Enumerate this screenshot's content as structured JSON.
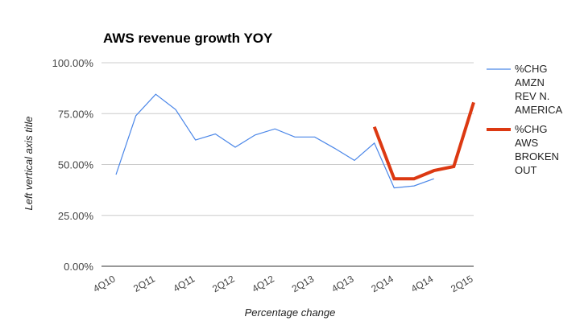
{
  "chart_data": {
    "type": "line",
    "title": "AWS revenue growth YOY",
    "xlabel": "Percentage change",
    "ylabel": "Left vertical axis title",
    "ylim": [
      0,
      100
    ],
    "y_ticks": [
      0,
      25,
      50,
      75,
      100
    ],
    "y_tick_labels": [
      "0.00%",
      "25.00%",
      "50.00%",
      "75.00%",
      "100.00%"
    ],
    "categories": [
      "4Q10",
      "1Q11",
      "2Q11",
      "3Q11",
      "4Q11",
      "1Q12",
      "2Q12",
      "3Q12",
      "4Q12",
      "1Q13",
      "2Q13",
      "3Q13",
      "4Q13",
      "1Q14",
      "2Q14",
      "3Q14",
      "4Q14",
      "1Q15",
      "2Q15"
    ],
    "x_tick_labels": [
      "4Q10",
      "2Q11",
      "4Q11",
      "2Q12",
      "4Q12",
      "2Q13",
      "4Q13",
      "2Q14",
      "4Q14",
      "2Q15"
    ],
    "legend_position": "right",
    "series": [
      {
        "name": "%CHG AMZN REV N. AMERICA",
        "legend_lines": [
          "%CHG",
          "AMZN",
          "REV N.",
          "AMERICA"
        ],
        "color": "#4a86e8",
        "values": [
          45,
          74,
          84.5,
          77,
          62,
          65,
          58.5,
          64.5,
          67.5,
          63.5,
          63.5,
          58,
          52,
          60.5,
          38.5,
          39.5,
          43,
          null,
          null
        ]
      },
      {
        "name": "%CHG AWS BROKEN OUT",
        "legend_lines": [
          "%CHG",
          "AWS",
          "BROKEN",
          "OUT"
        ],
        "color": "#dc3912",
        "values": [
          null,
          null,
          null,
          null,
          null,
          null,
          null,
          null,
          null,
          null,
          null,
          null,
          null,
          68.5,
          43,
          43,
          47,
          49,
          80.5
        ]
      }
    ]
  }
}
